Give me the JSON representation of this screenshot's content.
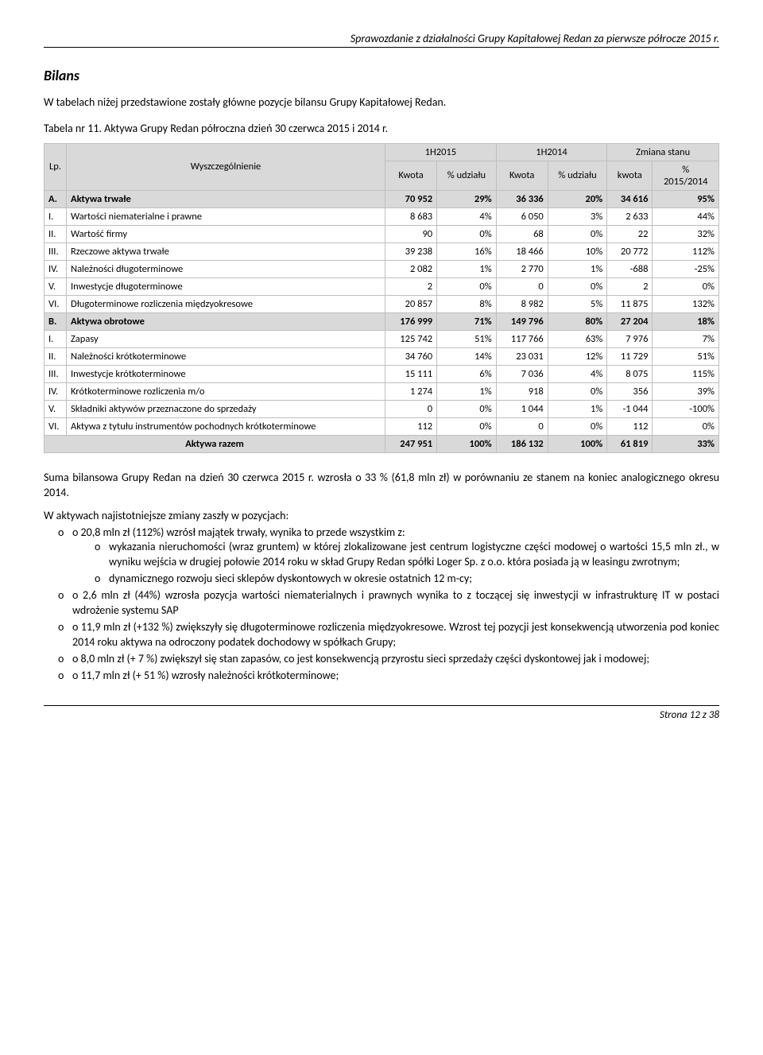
{
  "header": "Sprawozdanie z działalności Grupy Kapitałowej Redan za pierwsze półrocze 2015 r.",
  "section_title": "Bilans",
  "intro": "W tabelach niżej przedstawione zostały główne pozycje bilansu Grupy Kapitałowej Redan.",
  "table_caption": "Tabela nr 11.    Aktywa Grupy Redan półroczna dzień 30 czerwca  2015 i 2014 r.",
  "table": {
    "head": {
      "period1": "1H2015",
      "period2": "1H2014",
      "change": "Zmiana  stanu",
      "lp": "Lp.",
      "wysz": "Wyszczególnienie",
      "kwota": "Kwota",
      "pct": "% udziału",
      "kwota2": "kwota",
      "pct2": "%",
      "ratio": "2015/2014"
    },
    "rows": [
      {
        "lp": "A.",
        "label": "Aktywa trwałe",
        "v1": "70 952",
        "p1": "29%",
        "v2": "36 336",
        "p2": "20%",
        "d": "34 616",
        "dp": "95%",
        "head": true
      },
      {
        "lp": "I.",
        "label": "Wartości niematerialne i prawne",
        "v1": "8 683",
        "p1": "4%",
        "v2": "6 050",
        "p2": "3%",
        "d": "2 633",
        "dp": "44%"
      },
      {
        "lp": "II.",
        "label": "Wartość firmy",
        "v1": "90",
        "p1": "0%",
        "v2": "68",
        "p2": "0%",
        "d": "22",
        "dp": "32%"
      },
      {
        "lp": "III.",
        "label": "Rzeczowe aktywa trwałe",
        "v1": "39 238",
        "p1": "16%",
        "v2": "18 466",
        "p2": "10%",
        "d": "20 772",
        "dp": "112%"
      },
      {
        "lp": "IV.",
        "label": "Należności długoterminowe",
        "v1": "2 082",
        "p1": "1%",
        "v2": "2 770",
        "p2": "1%",
        "d": "-688",
        "dp": "-25%"
      },
      {
        "lp": "V.",
        "label": "Inwestycje długoterminowe",
        "v1": "2",
        "p1": "0%",
        "v2": "0",
        "p2": "0%",
        "d": "2",
        "dp": "0%"
      },
      {
        "lp": "VI.",
        "label": "Długoterminowe rozliczenia międzyokresowe",
        "v1": "20 857",
        "p1": "8%",
        "v2": "8 982",
        "p2": "5%",
        "d": "11 875",
        "dp": "132%"
      },
      {
        "lp": "B.",
        "label": "Aktywa obrotowe",
        "v1": "176 999",
        "p1": "71%",
        "v2": "149 796",
        "p2": "80%",
        "d": "27 204",
        "dp": "18%",
        "head": true
      },
      {
        "lp": "I.",
        "label": "Zapasy",
        "v1": "125 742",
        "p1": "51%",
        "v2": "117 766",
        "p2": "63%",
        "d": "7 976",
        "dp": "7%"
      },
      {
        "lp": "II.",
        "label": "Należności krótkoterminowe",
        "v1": "34 760",
        "p1": "14%",
        "v2": "23 031",
        "p2": "12%",
        "d": "11 729",
        "dp": "51%"
      },
      {
        "lp": "III.",
        "label": "Inwestycje krótkoterminowe",
        "v1": "15 111",
        "p1": "6%",
        "v2": "7 036",
        "p2": "4%",
        "d": "8 075",
        "dp": "115%"
      },
      {
        "lp": "IV.",
        "label": "Krótkoterminowe rozliczenia m/o",
        "v1": "1 274",
        "p1": "1%",
        "v2": "918",
        "p2": "0%",
        "d": "356",
        "dp": "39%"
      },
      {
        "lp": "V.",
        "label": "Składniki aktywów przeznaczone do sprzedaży",
        "v1": "0",
        "p1": "0%",
        "v2": "1 044",
        "p2": "1%",
        "d": "-1 044",
        "dp": "-100%"
      },
      {
        "lp": "VI.",
        "label": "Aktywa z tytułu instrumentów pochodnych krótkoterminowe",
        "v1": "112",
        "p1": "0%",
        "v2": "0",
        "p2": "0%",
        "d": "112",
        "dp": "0%"
      }
    ],
    "total": {
      "lp": "",
      "label": "Aktywa razem",
      "v1": "247 951",
      "p1": "100%",
      "v2": "186 132",
      "p2": "100%",
      "d": "61 819",
      "dp": "33%"
    }
  },
  "summary": "Suma bilansowa Grupy Redan na dzień 30 czerwca 2015 r. wzrosła o 33 % (61,8 mln zł) w porównaniu ze stanem na koniec analogicznego okresu 2014.",
  "changes_intro": "W aktywach najistotniejsze zmiany zaszły w pozycjach:",
  "bullets": [
    {
      "text": "o 20,8 mln zł (112%) wzrósł majątek trwały, wynika to przede wszystkim z:",
      "sub": [
        "wykazania nieruchomości (wraz gruntem) w której zlokalizowane jest centrum logistyczne części modowej o wartości 15,5 mln zł., w wyniku wejścia w drugiej połowie 2014 roku w skład Grupy Redan spółki Loger Sp. z o.o. która posiada ją w leasingu zwrotnym;",
        "dynamicznego rozwoju sieci sklepów dyskontowych w okresie ostatnich 12 m-cy;"
      ]
    },
    {
      "text": "o 2,6 mln zł (44%) wzrosła pozycja wartości niematerialnych i prawnych  wynika to z toczącej się inwestycji w infrastrukturę IT w postaci wdrożenie systemu SAP"
    },
    {
      "text": "o 11,9 mln zł (+132 %) zwiększyły się długoterminowe rozliczenia międzyokresowe. Wzrost tej pozycji jest konsekwencją utworzenia pod koniec 2014 roku aktywa na odroczony podatek dochodowy w spółkach Grupy;"
    },
    {
      "text": "o 8,0 mln zł (+ 7 %) zwiększył się stan zapasów, co jest konsekwencją przyrostu sieci sprzedaży części dyskontowej jak i modowej;"
    },
    {
      "text": "o 11,7 mln zł (+ 51 %) wzrosły należności krótkoterminowe;"
    }
  ],
  "footer": "Strona 12 z 38"
}
